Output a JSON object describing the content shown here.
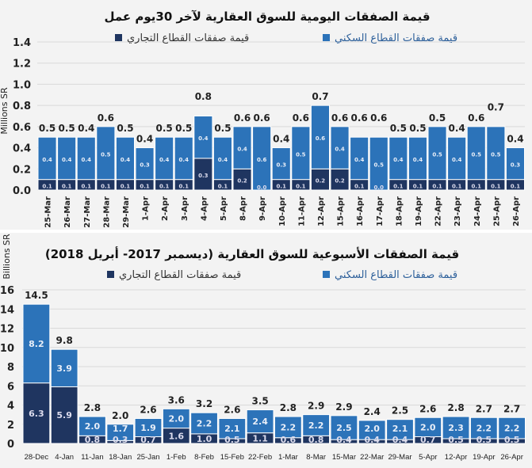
{
  "colors": {
    "residential": "#2c73b9",
    "commercial": "#1f3560",
    "background": "#f3f3f3",
    "grid": "#d9d9d9"
  },
  "chart_data": [
    {
      "type": "bar",
      "stacked": true,
      "title": "قيمة الصفقات اليومية للسوق العقارية لآخر 30يوم عمل",
      "ylabel": "Millions SR",
      "ylim": [
        0,
        1.4
      ],
      "yticks": [
        "0.0",
        "0.2",
        "0.4",
        "0.6",
        "0.8",
        "1.0",
        "1.2",
        "1.4"
      ],
      "grid": true,
      "legend": "top",
      "categories": [
        "25-Mar",
        "26-Mar",
        "27-Mar",
        "28-Mar",
        "29-Mar",
        "1-Apr",
        "2-Apr",
        "3-Apr",
        "4-Apr",
        "5-Apr",
        "8-Apr",
        "9-Apr",
        "10-Apr",
        "11-Apr",
        "12-Apr",
        "15-Apr",
        "16-Apr",
        "17-Apr",
        "18-Apr",
        "19-Apr",
        "22-Apr",
        "23-Apr",
        "24-Apr",
        "25-Apr",
        "26-Apr"
      ],
      "series": [
        {
          "name": "قيمة صفقات القطاع التجاري",
          "values": [
            0.1,
            0.1,
            0.1,
            0.1,
            0.1,
            0.1,
            0.1,
            0.1,
            0.3,
            0.1,
            0.2,
            0.0,
            0.1,
            0.1,
            0.2,
            0.2,
            0.1,
            0.0,
            0.1,
            0.1,
            0.1,
            0.1,
            0.1,
            0.1,
            0.1
          ]
        },
        {
          "name": "قيمة صفقات القطاع السكني",
          "values": [
            0.4,
            0.4,
            0.4,
            0.5,
            0.4,
            0.3,
            0.4,
            0.4,
            0.4,
            0.4,
            0.4,
            0.6,
            0.3,
            0.5,
            0.6,
            0.4,
            0.4,
            0.5,
            0.4,
            0.4,
            0.5,
            0.4,
            0.5,
            0.5,
            0.3
          ]
        }
      ],
      "totals": [
        0.5,
        0.5,
        0.4,
        0.6,
        0.5,
        0.4,
        0.5,
        0.5,
        0.8,
        0.5,
        0.6,
        0.6,
        0.4,
        0.6,
        0.7,
        0.6,
        0.6,
        0.6,
        0.5,
        0.5,
        0.5,
        0.4,
        0.6,
        0.7,
        0.4
      ]
    },
    {
      "type": "bar",
      "stacked": true,
      "title": "قيمة الصفقات الأسبوعية للسوق العقارية (ديسمبر 2017- أبريل 2018)",
      "ylabel": "Billions SR",
      "ylim": [
        0,
        16
      ],
      "yticks": [
        "0",
        "2",
        "4",
        "6",
        "8",
        "10",
        "12",
        "14",
        "16"
      ],
      "grid": true,
      "legend": "top",
      "categories": [
        "28-Dec",
        "4-Jan",
        "11-Jan",
        "18-Jan",
        "25-Jan",
        "1-Feb",
        "8-Feb",
        "15-Feb",
        "22-Feb",
        "1-Mar",
        "8-Mar",
        "15-Mar",
        "22-Mar",
        "29-Mar",
        "5-Apr",
        "12-Apr",
        "19-Apr",
        "26-Apr"
      ],
      "series": [
        {
          "name": "قيمة صفقات القطاع التجاري",
          "values": [
            6.3,
            5.9,
            0.8,
            0.3,
            0.7,
            1.6,
            1.0,
            0.5,
            1.1,
            0.6,
            0.8,
            0.4,
            0.4,
            0.4,
            0.7,
            0.5,
            0.5,
            0.5
          ]
        },
        {
          "name": "قيمة صفقات القطاع السكني",
          "values": [
            8.2,
            3.9,
            2.0,
            1.7,
            1.9,
            2.0,
            2.2,
            2.1,
            2.4,
            2.2,
            2.2,
            2.5,
            2.0,
            2.1,
            2.0,
            2.3,
            2.2,
            2.2
          ]
        }
      ],
      "totals": [
        14.5,
        9.8,
        2.8,
        2.0,
        2.6,
        3.6,
        3.2,
        2.6,
        3.5,
        2.8,
        2.9,
        2.9,
        2.4,
        2.5,
        2.6,
        2.8,
        2.7,
        2.7
      ]
    }
  ]
}
